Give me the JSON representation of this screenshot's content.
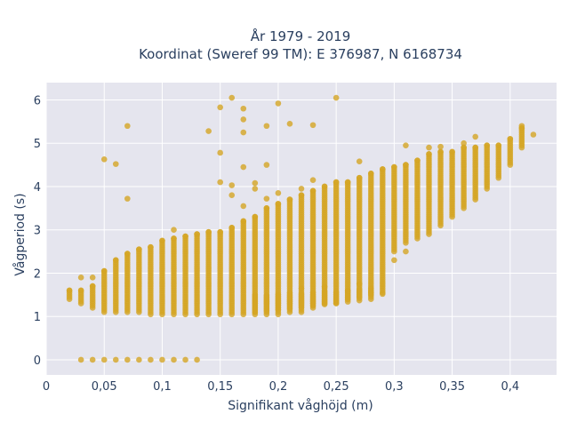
{
  "chart_data": {
    "type": "scatter",
    "title_line1": "År 1979 - 2019",
    "title_line2": "Koordinat (Sweref 99 TM): E 376987, N 6168734",
    "xlabel": "Signifikant våghöjd (m)",
    "ylabel": "Vågperiod (s)",
    "xlim": [
      0,
      0.44
    ],
    "ylim": [
      -0.35,
      6.4
    ],
    "x_ticks": [
      0,
      0.05,
      0.1,
      0.15,
      0.2,
      0.25,
      0.3,
      0.35,
      0.4
    ],
    "x_tick_labels": [
      "0",
      "0,05",
      "0,1",
      "0,15",
      "0,2",
      "0,25",
      "0,3",
      "0,35",
      "0,4"
    ],
    "y_ticks": [
      0,
      1,
      2,
      3,
      4,
      5,
      6
    ],
    "y_tick_labels": [
      "0",
      "1",
      "2",
      "3",
      "4",
      "5",
      "6"
    ],
    "grid": true,
    "marker_color": "#D4A524",
    "plot_bg": "#E5E5EE",
    "columns": [
      {
        "x": 0.02,
        "y_min": 1.4,
        "y_max": 1.6
      },
      {
        "x": 0.03,
        "y_min": 1.3,
        "y_max": 1.6
      },
      {
        "x": 0.04,
        "y_min": 1.2,
        "y_max": 1.7
      },
      {
        "x": 0.05,
        "y_min": 1.1,
        "y_max": 2.05
      },
      {
        "x": 0.06,
        "y_min": 1.1,
        "y_max": 2.3
      },
      {
        "x": 0.07,
        "y_min": 1.1,
        "y_max": 2.45
      },
      {
        "x": 0.08,
        "y_min": 1.1,
        "y_max": 2.55
      },
      {
        "x": 0.09,
        "y_min": 1.05,
        "y_max": 2.6
      },
      {
        "x": 0.1,
        "y_min": 1.05,
        "y_max": 2.75
      },
      {
        "x": 0.11,
        "y_min": 1.05,
        "y_max": 2.8
      },
      {
        "x": 0.12,
        "y_min": 1.05,
        "y_max": 2.85
      },
      {
        "x": 0.13,
        "y_min": 1.05,
        "y_max": 2.9
      },
      {
        "x": 0.14,
        "y_min": 1.05,
        "y_max": 2.95
      },
      {
        "x": 0.15,
        "y_min": 1.05,
        "y_max": 2.95
      },
      {
        "x": 0.16,
        "y_min": 1.05,
        "y_max": 3.05
      },
      {
        "x": 0.17,
        "y_min": 1.05,
        "y_max": 3.2
      },
      {
        "x": 0.18,
        "y_min": 1.05,
        "y_max": 3.3
      },
      {
        "x": 0.19,
        "y_min": 1.05,
        "y_max": 3.5
      },
      {
        "x": 0.2,
        "y_min": 1.05,
        "y_max": 3.6
      },
      {
        "x": 0.21,
        "y_min": 1.1,
        "y_max": 3.7
      },
      {
        "x": 0.22,
        "y_min": 1.1,
        "y_max": 3.8
      },
      {
        "x": 0.23,
        "y_min": 1.2,
        "y_max": 3.9
      },
      {
        "x": 0.24,
        "y_min": 1.3,
        "y_max": 4.0
      },
      {
        "x": 0.25,
        "y_min": 1.3,
        "y_max": 4.1
      },
      {
        "x": 0.26,
        "y_min": 1.4,
        "y_max": 4.1
      },
      {
        "x": 0.27,
        "y_min": 1.45,
        "y_max": 4.2
      },
      {
        "x": 0.28,
        "y_min": 1.5,
        "y_max": 4.3
      },
      {
        "x": 0.29,
        "y_min": 1.55,
        "y_max": 4.4
      },
      {
        "x": 0.3,
        "y_min": 2.5,
        "y_max": 4.45
      },
      {
        "x": 0.31,
        "y_min": 2.7,
        "y_max": 4.5
      },
      {
        "x": 0.32,
        "y_min": 2.8,
        "y_max": 4.6
      },
      {
        "x": 0.33,
        "y_min": 2.9,
        "y_max": 4.75
      },
      {
        "x": 0.34,
        "y_min": 3.1,
        "y_max": 4.8
      },
      {
        "x": 0.35,
        "y_min": 3.3,
        "y_max": 4.8
      },
      {
        "x": 0.36,
        "y_min": 3.5,
        "y_max": 4.9
      },
      {
        "x": 0.37,
        "y_min": 3.7,
        "y_max": 4.9
      },
      {
        "x": 0.38,
        "y_min": 3.95,
        "y_max": 4.95
      },
      {
        "x": 0.39,
        "y_min": 4.2,
        "y_max": 4.95
      },
      {
        "x": 0.4,
        "y_min": 4.5,
        "y_max": 5.1
      },
      {
        "x": 0.41,
        "y_min": 4.9,
        "y_max": 5.35
      }
    ],
    "points": [
      {
        "x": 0.03,
        "y": 0.0
      },
      {
        "x": 0.04,
        "y": 0.0
      },
      {
        "x": 0.05,
        "y": 0.0
      },
      {
        "x": 0.06,
        "y": 0.0
      },
      {
        "x": 0.07,
        "y": 0.0
      },
      {
        "x": 0.08,
        "y": 0.0
      },
      {
        "x": 0.09,
        "y": 0.0
      },
      {
        "x": 0.1,
        "y": 0.0
      },
      {
        "x": 0.11,
        "y": 0.0
      },
      {
        "x": 0.12,
        "y": 0.0
      },
      {
        "x": 0.13,
        "y": 0.0
      },
      {
        "x": 0.03,
        "y": 1.9
      },
      {
        "x": 0.04,
        "y": 1.9
      },
      {
        "x": 0.05,
        "y": 4.63
      },
      {
        "x": 0.06,
        "y": 4.52
      },
      {
        "x": 0.07,
        "y": 5.4
      },
      {
        "x": 0.07,
        "y": 3.72
      },
      {
        "x": 0.11,
        "y": 3.0
      },
      {
        "x": 0.14,
        "y": 5.28
      },
      {
        "x": 0.15,
        "y": 5.83
      },
      {
        "x": 0.15,
        "y": 4.78
      },
      {
        "x": 0.15,
        "y": 4.1
      },
      {
        "x": 0.16,
        "y": 6.05
      },
      {
        "x": 0.16,
        "y": 4.03
      },
      {
        "x": 0.16,
        "y": 3.8
      },
      {
        "x": 0.17,
        "y": 5.8
      },
      {
        "x": 0.17,
        "y": 5.55
      },
      {
        "x": 0.17,
        "y": 5.25
      },
      {
        "x": 0.17,
        "y": 4.45
      },
      {
        "x": 0.17,
        "y": 3.55
      },
      {
        "x": 0.18,
        "y": 4.08
      },
      {
        "x": 0.18,
        "y": 3.95
      },
      {
        "x": 0.19,
        "y": 5.4
      },
      {
        "x": 0.19,
        "y": 4.5
      },
      {
        "x": 0.19,
        "y": 3.72
      },
      {
        "x": 0.2,
        "y": 5.92
      },
      {
        "x": 0.2,
        "y": 3.85
      },
      {
        "x": 0.21,
        "y": 5.45
      },
      {
        "x": 0.22,
        "y": 3.95
      },
      {
        "x": 0.23,
        "y": 5.42
      },
      {
        "x": 0.23,
        "y": 4.15
      },
      {
        "x": 0.25,
        "y": 6.05
      },
      {
        "x": 0.27,
        "y": 4.58
      },
      {
        "x": 0.27,
        "y": 1.75
      },
      {
        "x": 0.3,
        "y": 2.3
      },
      {
        "x": 0.31,
        "y": 4.95
      },
      {
        "x": 0.31,
        "y": 2.5
      },
      {
        "x": 0.33,
        "y": 4.9
      },
      {
        "x": 0.34,
        "y": 4.92
      },
      {
        "x": 0.36,
        "y": 5.0
      },
      {
        "x": 0.37,
        "y": 5.15
      },
      {
        "x": 0.42,
        "y": 5.2
      },
      {
        "x": 0.41,
        "y": 5.4
      },
      {
        "x": 0.22,
        "y": 1.65
      },
      {
        "x": 0.24,
        "y": 1.68
      },
      {
        "x": 0.26,
        "y": 1.6
      },
      {
        "x": 0.28,
        "y": 1.55
      },
      {
        "x": 0.29,
        "y": 1.52
      }
    ],
    "lower_band": {
      "x_from": 0.18,
      "x_to": 0.28,
      "y_min_start": 1.1,
      "y_min_end": 1.4,
      "y_max_start": 1.5,
      "y_max_end": 1.65
    }
  }
}
